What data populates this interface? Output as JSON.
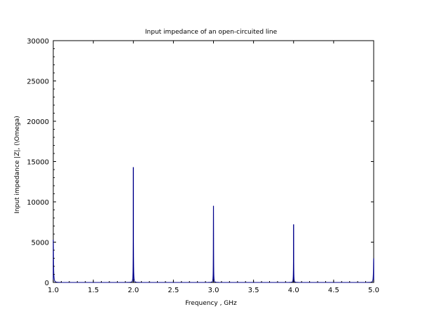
{
  "chart_data": {
    "type": "line",
    "title": "Input impedance of an open-circuited line",
    "xlabel": "Frequency , GHz",
    "ylabel": "Input impedance |Z|, (\\Omega)",
    "xlim": [
      1.0,
      5.0
    ],
    "ylim": [
      0,
      30000
    ],
    "xticks": [
      1.0,
      1.5,
      2.0,
      2.5,
      3.0,
      3.5,
      4.0,
      4.5,
      5.0
    ],
    "xtick_labels": [
      "1.0",
      "1.5",
      "2.0",
      "2.5",
      "3.0",
      "3.5",
      "4.0",
      "4.5",
      "5.0"
    ],
    "yticks": [
      0,
      5000,
      10000,
      15000,
      20000,
      25000,
      30000
    ],
    "ytick_labels": [
      "0",
      "5000",
      "10000",
      "15000",
      "20000",
      "25000",
      "30000"
    ],
    "grid": false,
    "legend": "none",
    "series": [
      {
        "color": "#00008b",
        "resonances": [
          {
            "f": 1.0,
            "peak": 5300,
            "width": 0.0035
          },
          {
            "f": 2.0,
            "peak": 14300,
            "width": 0.0016
          },
          {
            "f": 3.0,
            "peak": 9500,
            "width": 0.0016
          },
          {
            "f": 4.0,
            "peak": 7200,
            "width": 0.0016
          },
          {
            "f": 5.0,
            "peak": 3000,
            "width": 0.0035
          }
        ]
      }
    ]
  }
}
